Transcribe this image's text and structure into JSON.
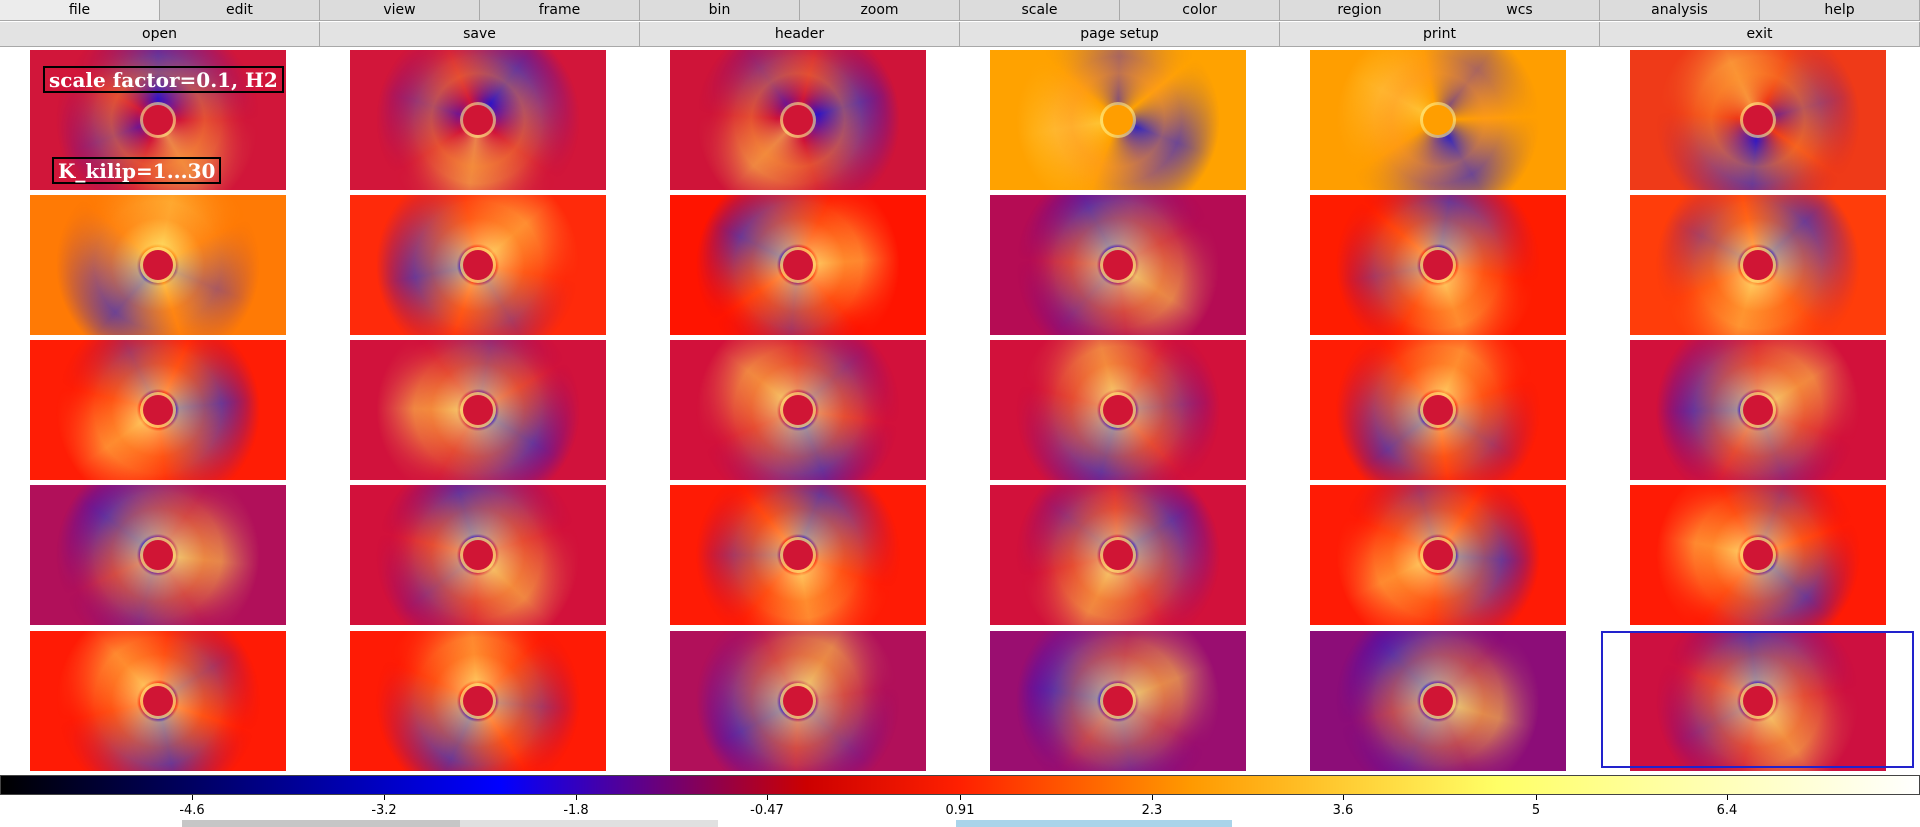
{
  "menu": [
    "file",
    "edit",
    "view",
    "frame",
    "bin",
    "zoom",
    "scale",
    "color",
    "region",
    "wcs",
    "analysis",
    "help"
  ],
  "buttons": [
    "open",
    "save",
    "header",
    "page setup",
    "print",
    "exit"
  ],
  "annotations": {
    "scale_label": "scale factor=0.1, H2",
    "kklip_label": "K_kilip=1...30"
  },
  "colorbar": {
    "ticks": [
      "-4.6",
      "-3.2",
      "-1.8",
      "-0.47",
      "0.91",
      "2.3",
      "3.6",
      "5",
      "6.4"
    ],
    "colors": [
      "#000000",
      "#0000ff",
      "#cc0000",
      "#ff2000",
      "#ff9900",
      "#ffff66",
      "#ffffff"
    ]
  },
  "frames": {
    "rows": 5,
    "cols": 6,
    "selected_index": 29,
    "row_backgrounds": [
      [
        "#d1163a",
        "#d2163a",
        "#cf1439",
        "#ffa200",
        "#ff9e00",
        "#ef3a18"
      ],
      [
        "#ff7a05",
        "#ff2a0a",
        "#ff1400",
        "#b50c54",
        "#ff1c00",
        "#ff3d0a"
      ],
      [
        "#ff1d05",
        "#d1123c",
        "#d2113b",
        "#d2113b",
        "#ff1d05",
        "#d2113b"
      ],
      [
        "#b1105a",
        "#d2113b",
        "#ff1b05",
        "#d2113b",
        "#ff1b05",
        "#ff1b05"
      ],
      [
        "#ff1b05",
        "#ff1b05",
        "#b1105a",
        "#9a0e70",
        "#8c0d78",
        "#cd1040"
      ]
    ]
  }
}
